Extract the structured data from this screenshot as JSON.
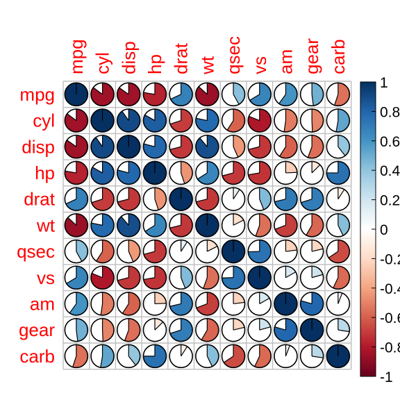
{
  "chart_data": {
    "type": "heatmap",
    "style": "pie",
    "variables": [
      "mpg",
      "cyl",
      "disp",
      "hp",
      "drat",
      "wt",
      "qsec",
      "vs",
      "am",
      "gear",
      "carb"
    ],
    "matrix": [
      [
        1,
        -0.852,
        -0.848,
        -0.776,
        0.681,
        -0.868,
        0.419,
        0.664,
        0.6,
        0.48,
        -0.551
      ],
      [
        -0.852,
        1,
        0.902,
        0.832,
        -0.7,
        0.782,
        -0.591,
        -0.811,
        -0.523,
        -0.493,
        0.527
      ],
      [
        -0.848,
        0.902,
        1,
        0.791,
        -0.71,
        0.888,
        -0.434,
        -0.71,
        -0.591,
        -0.556,
        0.395
      ],
      [
        -0.776,
        0.832,
        0.791,
        1,
        -0.449,
        0.659,
        -0.708,
        -0.723,
        -0.243,
        -0.126,
        0.75
      ],
      [
        0.681,
        -0.7,
        -0.71,
        -0.449,
        1,
        -0.712,
        0.091,
        0.44,
        0.713,
        0.7,
        -0.091
      ],
      [
        -0.868,
        0.782,
        0.888,
        0.659,
        -0.712,
        1,
        -0.175,
        -0.555,
        -0.692,
        -0.583,
        0.428
      ],
      [
        0.419,
        -0.591,
        -0.434,
        -0.708,
        0.091,
        -0.175,
        1,
        0.745,
        -0.23,
        -0.213,
        -0.656
      ],
      [
        0.664,
        -0.811,
        -0.71,
        -0.723,
        0.44,
        -0.555,
        0.745,
        1,
        0.168,
        0.206,
        -0.57
      ],
      [
        0.6,
        -0.523,
        -0.591,
        -0.243,
        0.713,
        -0.692,
        -0.23,
        0.168,
        1,
        0.794,
        0.058
      ],
      [
        0.48,
        -0.493,
        -0.556,
        -0.126,
        0.7,
        -0.583,
        -0.213,
        0.206,
        0.794,
        1,
        0.274
      ],
      [
        -0.551,
        0.527,
        0.395,
        0.75,
        -0.091,
        0.428,
        -0.656,
        -0.57,
        0.058,
        0.274,
        1
      ]
    ],
    "colorbar": {
      "range": [
        -1,
        1
      ],
      "ticks": [
        "1",
        "0.8",
        "0.6",
        "0.4",
        "0.2",
        "0",
        "-0.2",
        "-0.4",
        "-0.6",
        "-0.8",
        "-1"
      ],
      "colors": [
        "#67001F",
        "#B2182B",
        "#D6604D",
        "#F4A582",
        "#FDDBC7",
        "#FFFFFF",
        "#D1E5F0",
        "#92C5DE",
        "#4393C3",
        "#2166AC",
        "#053061"
      ]
    },
    "label_color": "#FF0000",
    "grid_color": "#BEBEBE"
  }
}
